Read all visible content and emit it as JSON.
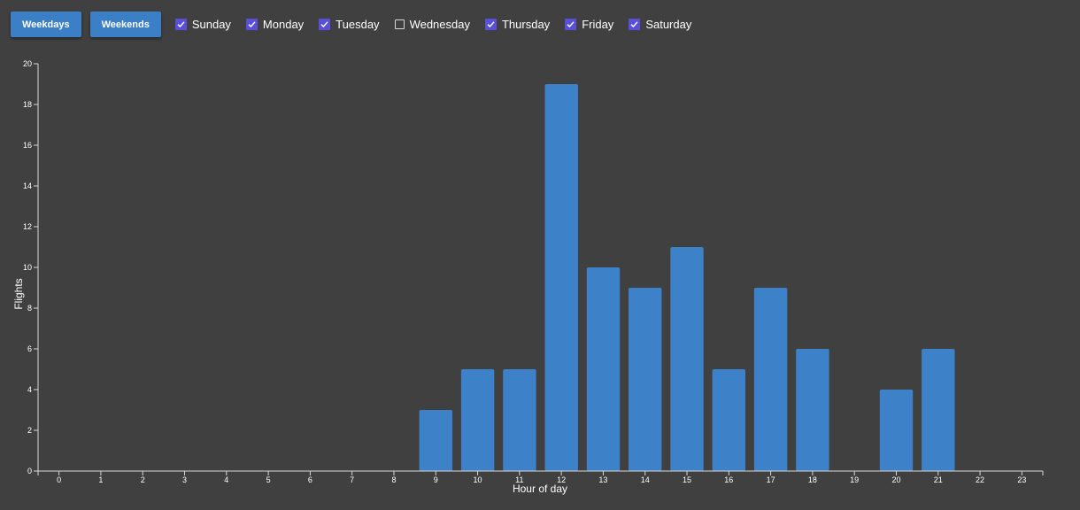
{
  "toolbar": {
    "weekdays_label": "Weekdays",
    "weekends_label": "Weekends"
  },
  "days": [
    {
      "label": "Sunday",
      "checked": true
    },
    {
      "label": "Monday",
      "checked": true
    },
    {
      "label": "Tuesday",
      "checked": true
    },
    {
      "label": "Wednesday",
      "checked": false
    },
    {
      "label": "Thursday",
      "checked": true
    },
    {
      "label": "Friday",
      "checked": true
    },
    {
      "label": "Saturday",
      "checked": true
    }
  ],
  "colors": {
    "background": "#404040",
    "button": "#3b7fc6",
    "bar": "#3d82c8",
    "checkbox_checked": "#5a50d8",
    "axis": "#d9d9d9"
  },
  "chart_data": {
    "type": "bar",
    "categories": [
      "0",
      "1",
      "2",
      "3",
      "4",
      "5",
      "6",
      "7",
      "8",
      "9",
      "10",
      "11",
      "12",
      "13",
      "14",
      "15",
      "16",
      "17",
      "18",
      "19",
      "20",
      "21",
      "22",
      "23"
    ],
    "values": [
      0,
      0,
      0,
      0,
      0,
      0,
      0,
      0,
      0,
      3,
      5,
      5,
      19,
      10,
      9,
      11,
      5,
      9,
      6,
      0,
      4,
      6,
      0,
      0
    ],
    "xlabel": "Hour of day",
    "ylabel": "Flights",
    "ylim": [
      0,
      20
    ],
    "yticks": [
      "0",
      "2",
      "4",
      "6",
      "8",
      "10",
      "12",
      "14",
      "16",
      "18",
      "20"
    ],
    "grid": false,
    "legend": "none"
  }
}
